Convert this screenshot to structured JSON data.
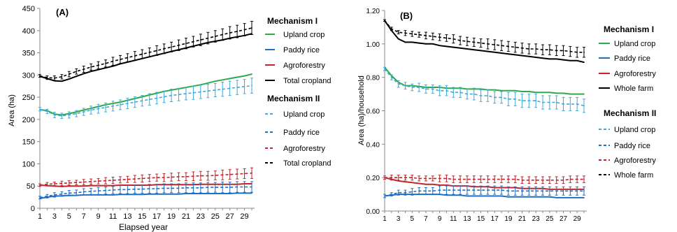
{
  "chart_data": [
    {
      "type": "line",
      "panel_label": "(A)",
      "title": "",
      "xlabel": "Elapsed year",
      "ylabel": "Area (ha)",
      "ylim": [
        0,
        450
      ],
      "yticks": [
        "0",
        "50",
        "100",
        "150",
        "200",
        "250",
        "300",
        "350",
        "400",
        "450"
      ],
      "xticks": [
        "1",
        "3",
        "5",
        "7",
        "9",
        "11",
        "13",
        "15",
        "17",
        "19",
        "21",
        "23",
        "25",
        "27",
        "29"
      ],
      "x": [
        1,
        2,
        3,
        4,
        5,
        6,
        7,
        8,
        9,
        10,
        11,
        12,
        13,
        14,
        15,
        16,
        17,
        18,
        19,
        20,
        21,
        22,
        23,
        24,
        25,
        26,
        27,
        28,
        29,
        30
      ],
      "grid": false,
      "legend_position": "right",
      "legend_groups": [
        {
          "title": "Mechanism I",
          "entries": [
            "Upland crop",
            "Paddy rice",
            "Agroforestry",
            "Total cropland"
          ]
        },
        {
          "title": "Mechanism II",
          "entries": [
            "Upland crop",
            "Paddy rice",
            "Agroforestry",
            "Total cropland"
          ]
        }
      ],
      "series": [
        {
          "name": "Upland crop",
          "mechanism": "I",
          "color": "#2eaa4a",
          "dashed": false,
          "errorbars": false,
          "values": [
            222,
            220,
            212,
            210,
            213,
            217,
            221,
            225,
            229,
            233,
            236,
            239,
            243,
            247,
            251,
            255,
            259,
            263,
            266,
            269,
            272,
            275,
            278,
            282,
            286,
            289,
            292,
            295,
            298,
            302
          ]
        },
        {
          "name": "Paddy rice",
          "mechanism": "I",
          "color": "#1f6fc5",
          "dashed": false,
          "errorbars": false,
          "values": [
            22,
            25,
            27,
            28,
            29,
            29,
            30,
            30,
            30,
            30,
            30,
            31,
            31,
            31,
            31,
            32,
            32,
            32,
            32,
            32,
            33,
            33,
            33,
            33,
            33,
            33,
            33,
            34,
            34,
            34
          ]
        },
        {
          "name": "Agroforestry",
          "mechanism": "I",
          "color": "#c0262c",
          "dashed": false,
          "errorbars": false,
          "values": [
            52,
            51,
            50,
            49,
            50,
            50,
            50,
            51,
            51,
            51,
            51,
            52,
            52,
            52,
            52,
            52,
            53,
            53,
            53,
            53,
            53,
            53,
            54,
            54,
            54,
            54,
            54,
            54,
            55,
            55
          ]
        },
        {
          "name": "Total cropland",
          "mechanism": "I",
          "color": "#000000",
          "dashed": false,
          "errorbars": false,
          "values": [
            297,
            292,
            287,
            286,
            291,
            297,
            303,
            308,
            312,
            316,
            320,
            325,
            329,
            333,
            337,
            341,
            345,
            349,
            353,
            357,
            361,
            365,
            369,
            373,
            376,
            379,
            383,
            386,
            389,
            393
          ]
        },
        {
          "name": "Upland crop",
          "mechanism": "II",
          "color": "#3fa9d9",
          "dashed": true,
          "errorbars": true,
          "values": [
            223,
            218,
            210,
            208,
            210,
            213,
            217,
            221,
            224,
            227,
            230,
            233,
            236,
            239,
            242,
            245,
            248,
            251,
            254,
            256,
            258,
            260,
            262,
            264,
            266,
            268,
            270,
            272,
            274,
            276
          ],
          "err": [
            4,
            5,
            6,
            6,
            7,
            7,
            8,
            9,
            10,
            10,
            11,
            11,
            12,
            12,
            12,
            13,
            13,
            13,
            14,
            14,
            14,
            15,
            15,
            15,
            15,
            16,
            16,
            16,
            16,
            17
          ]
        },
        {
          "name": "Paddy rice",
          "mechanism": "II",
          "color": "#1f6fc5",
          "dashed": true,
          "errorbars": true,
          "values": [
            24,
            27,
            30,
            32,
            34,
            35,
            37,
            38,
            39,
            40,
            41,
            42,
            42,
            43,
            43,
            44,
            44,
            45,
            45,
            45,
            46,
            46,
            46,
            47,
            47,
            47,
            47,
            48,
            48,
            48
          ],
          "err": [
            3,
            4,
            5,
            5,
            6,
            6,
            7,
            7,
            8,
            8,
            8,
            9,
            9,
            9,
            9,
            10,
            10,
            10,
            10,
            10,
            11,
            11,
            11,
            11,
            11,
            12,
            12,
            12,
            12,
            12
          ]
        },
        {
          "name": "Agroforestry",
          "mechanism": "II",
          "color": "#c0262c",
          "dashed": true,
          "errorbars": true,
          "values": [
            52,
            54,
            55,
            56,
            57,
            58,
            59,
            60,
            61,
            62,
            63,
            64,
            65,
            66,
            67,
            68,
            69,
            69,
            70,
            71,
            71,
            72,
            73,
            73,
            74,
            75,
            76,
            77,
            78,
            79
          ],
          "err": [
            3,
            4,
            4,
            5,
            5,
            5,
            6,
            6,
            6,
            7,
            7,
            7,
            7,
            8,
            8,
            8,
            8,
            9,
            9,
            9,
            9,
            10,
            10,
            10,
            10,
            11,
            11,
            11,
            11,
            12
          ]
        },
        {
          "name": "Total cropland",
          "mechanism": "II",
          "color": "#000000",
          "dashed": true,
          "errorbars": true,
          "values": [
            298,
            294,
            293,
            296,
            302,
            308,
            313,
            318,
            322,
            326,
            331,
            335,
            339,
            343,
            347,
            351,
            355,
            359,
            363,
            367,
            371,
            375,
            379,
            383,
            387,
            391,
            395,
            398,
            402,
            406
          ],
          "err": [
            3,
            4,
            5,
            5,
            6,
            6,
            7,
            7,
            8,
            8,
            9,
            9,
            9,
            10,
            10,
            10,
            11,
            11,
            11,
            12,
            12,
            12,
            13,
            13,
            13,
            13,
            14,
            14,
            14,
            15
          ]
        }
      ]
    },
    {
      "type": "line",
      "panel_label": "(B)",
      "title": "",
      "xlabel": "",
      "ylabel": "Area (ha)/household",
      "ylim": [
        0,
        1.2
      ],
      "yticks": [
        "0.00",
        "0.20",
        "0.40",
        "0.60",
        "0.80",
        "1.00",
        "1.20"
      ],
      "xticks": [
        "1",
        "3",
        "5",
        "7",
        "9",
        "11",
        "13",
        "15",
        "17",
        "19",
        "21",
        "23",
        "25",
        "27",
        "29"
      ],
      "x": [
        1,
        2,
        3,
        4,
        5,
        6,
        7,
        8,
        9,
        10,
        11,
        12,
        13,
        14,
        15,
        16,
        17,
        18,
        19,
        20,
        21,
        22,
        23,
        24,
        25,
        26,
        27,
        28,
        29,
        30
      ],
      "grid": false,
      "legend_position": "right",
      "legend_groups": [
        {
          "title": "Mechanism I",
          "entries": [
            "Upland crop",
            "Paddy rice",
            "Agroforestry",
            "Whole farm"
          ]
        },
        {
          "title": "Mechanism II",
          "entries": [
            "Upland crop",
            "Paddy rice",
            "Agroforestry",
            "Whole farm"
          ]
        }
      ],
      "series": [
        {
          "name": "Upland crop",
          "mechanism": "I",
          "color": "#2eaa4a",
          "dashed": false,
          "errorbars": false,
          "values": [
            0.86,
            0.81,
            0.77,
            0.75,
            0.75,
            0.745,
            0.74,
            0.74,
            0.74,
            0.735,
            0.735,
            0.735,
            0.73,
            0.73,
            0.73,
            0.725,
            0.725,
            0.72,
            0.72,
            0.72,
            0.715,
            0.715,
            0.71,
            0.71,
            0.71,
            0.705,
            0.705,
            0.7,
            0.7,
            0.7
          ]
        },
        {
          "name": "Paddy rice",
          "mechanism": "I",
          "color": "#1f6fc5",
          "dashed": false,
          "errorbars": false,
          "values": [
            0.09,
            0.095,
            0.1,
            0.1,
            0.1,
            0.1,
            0.1,
            0.1,
            0.1,
            0.095,
            0.095,
            0.095,
            0.09,
            0.09,
            0.09,
            0.09,
            0.09,
            0.09,
            0.085,
            0.085,
            0.085,
            0.085,
            0.085,
            0.085,
            0.085,
            0.08,
            0.08,
            0.08,
            0.08,
            0.08
          ]
        },
        {
          "name": "Agroforestry",
          "mechanism": "I",
          "color": "#c0262c",
          "dashed": false,
          "errorbars": false,
          "values": [
            0.2,
            0.19,
            0.18,
            0.175,
            0.17,
            0.165,
            0.16,
            0.16,
            0.155,
            0.155,
            0.15,
            0.15,
            0.15,
            0.145,
            0.145,
            0.145,
            0.14,
            0.14,
            0.14,
            0.14,
            0.135,
            0.135,
            0.135,
            0.135,
            0.13,
            0.13,
            0.13,
            0.13,
            0.13,
            0.13
          ]
        },
        {
          "name": "Whole farm",
          "mechanism": "I",
          "color": "#000000",
          "dashed": false,
          "errorbars": false,
          "values": [
            1.14,
            1.08,
            1.03,
            1.01,
            1.01,
            1.005,
            1.0,
            1.0,
            0.99,
            0.985,
            0.98,
            0.975,
            0.97,
            0.965,
            0.96,
            0.955,
            0.95,
            0.945,
            0.94,
            0.935,
            0.93,
            0.925,
            0.92,
            0.915,
            0.91,
            0.91,
            0.905,
            0.9,
            0.9,
            0.89
          ]
        },
        {
          "name": "Upland crop",
          "mechanism": "II",
          "color": "#3fa9d9",
          "dashed": true,
          "errorbars": true,
          "values": [
            0.85,
            0.8,
            0.76,
            0.75,
            0.74,
            0.74,
            0.73,
            0.73,
            0.72,
            0.72,
            0.71,
            0.71,
            0.7,
            0.7,
            0.69,
            0.69,
            0.68,
            0.68,
            0.67,
            0.67,
            0.66,
            0.66,
            0.66,
            0.65,
            0.65,
            0.65,
            0.64,
            0.64,
            0.64,
            0.63
          ],
          "err": [
            0.01,
            0.015,
            0.02,
            0.02,
            0.02,
            0.025,
            0.025,
            0.025,
            0.03,
            0.03,
            0.03,
            0.03,
            0.03,
            0.035,
            0.035,
            0.035,
            0.035,
            0.035,
            0.04,
            0.04,
            0.04,
            0.04,
            0.04,
            0.04,
            0.04,
            0.04,
            0.04,
            0.04,
            0.04,
            0.04
          ]
        },
        {
          "name": "Paddy rice",
          "mechanism": "II",
          "color": "#1f6fc5",
          "dashed": true,
          "errorbars": true,
          "values": [
            0.09,
            0.1,
            0.11,
            0.11,
            0.115,
            0.12,
            0.12,
            0.12,
            0.125,
            0.125,
            0.125,
            0.125,
            0.125,
            0.125,
            0.125,
            0.125,
            0.125,
            0.125,
            0.12,
            0.12,
            0.12,
            0.12,
            0.12,
            0.12,
            0.12,
            0.12,
            0.12,
            0.12,
            0.12,
            0.12
          ],
          "err": [
            0.01,
            0.01,
            0.015,
            0.015,
            0.02,
            0.02,
            0.02,
            0.02,
            0.025,
            0.025,
            0.025,
            0.025,
            0.025,
            0.025,
            0.025,
            0.025,
            0.025,
            0.025,
            0.025,
            0.025,
            0.025,
            0.025,
            0.025,
            0.025,
            0.025,
            0.025,
            0.025,
            0.025,
            0.025,
            0.025
          ]
        },
        {
          "name": "Agroforestry",
          "mechanism": "II",
          "color": "#c0262c",
          "dashed": true,
          "errorbars": true,
          "values": [
            0.2,
            0.2,
            0.2,
            0.2,
            0.2,
            0.195,
            0.195,
            0.195,
            0.195,
            0.195,
            0.19,
            0.19,
            0.19,
            0.19,
            0.19,
            0.19,
            0.19,
            0.19,
            0.19,
            0.19,
            0.185,
            0.185,
            0.185,
            0.185,
            0.185,
            0.185,
            0.185,
            0.19,
            0.19,
            0.19
          ],
          "err": [
            0.01,
            0.015,
            0.015,
            0.015,
            0.015,
            0.015,
            0.015,
            0.015,
            0.02,
            0.02,
            0.02,
            0.02,
            0.02,
            0.02,
            0.02,
            0.02,
            0.02,
            0.02,
            0.02,
            0.02,
            0.02,
            0.02,
            0.02,
            0.02,
            0.02,
            0.02,
            0.02,
            0.02,
            0.02,
            0.02
          ]
        },
        {
          "name": "Whole farm",
          "mechanism": "II",
          "color": "#000000",
          "dashed": true,
          "errorbars": true,
          "values": [
            1.14,
            1.09,
            1.07,
            1.065,
            1.06,
            1.055,
            1.05,
            1.045,
            1.04,
            1.035,
            1.03,
            1.02,
            1.015,
            1.01,
            1.005,
            1.0,
            0.995,
            0.99,
            0.985,
            0.98,
            0.975,
            0.97,
            0.97,
            0.965,
            0.965,
            0.96,
            0.96,
            0.955,
            0.95,
            0.95
          ],
          "err": [
            0.005,
            0.01,
            0.01,
            0.015,
            0.015,
            0.015,
            0.02,
            0.02,
            0.02,
            0.02,
            0.025,
            0.025,
            0.025,
            0.025,
            0.025,
            0.03,
            0.03,
            0.03,
            0.03,
            0.03,
            0.03,
            0.03,
            0.03,
            0.03,
            0.03,
            0.03,
            0.03,
            0.03,
            0.03,
            0.03
          ]
        }
      ]
    }
  ]
}
